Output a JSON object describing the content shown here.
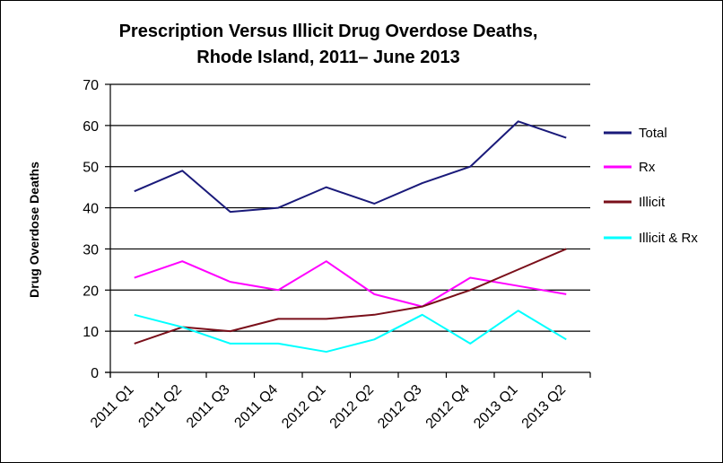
{
  "chart_data": {
    "type": "line",
    "title": "Prescription Versus Illicit Drug Overdose Deaths,",
    "subtitle": "Rhode Island, 2011– June 2013",
    "xlabel": "",
    "ylabel": "Drug Overdose Deaths",
    "ylim": [
      0,
      70
    ],
    "yticks": [
      0,
      10,
      20,
      30,
      40,
      50,
      60,
      70
    ],
    "grid": true,
    "legend_position": "right",
    "categories": [
      "2011 Q1",
      "2011 Q2",
      "2011 Q3",
      "2011 Q4",
      "2012 Q1",
      "2012 Q2",
      "2012 Q3",
      "2012 Q4",
      "2013 Q1",
      "2013 Q2"
    ],
    "series": [
      {
        "name": "Total",
        "color": "#1a1a7a",
        "values": [
          44,
          49,
          39,
          40,
          45,
          41,
          46,
          50,
          61,
          57
        ]
      },
      {
        "name": "Rx",
        "color": "#ff00ff",
        "values": [
          23,
          27,
          22,
          20,
          27,
          19,
          16,
          23,
          21,
          19
        ]
      },
      {
        "name": "Illicit",
        "color": "#7a0f1a",
        "values": [
          7,
          11,
          10,
          13,
          13,
          14,
          16,
          20,
          25,
          30
        ]
      },
      {
        "name": "Illicit & Rx",
        "color": "#00ffff",
        "values": [
          14,
          11,
          7,
          7,
          5,
          8,
          14,
          7,
          15,
          8
        ]
      }
    ]
  }
}
